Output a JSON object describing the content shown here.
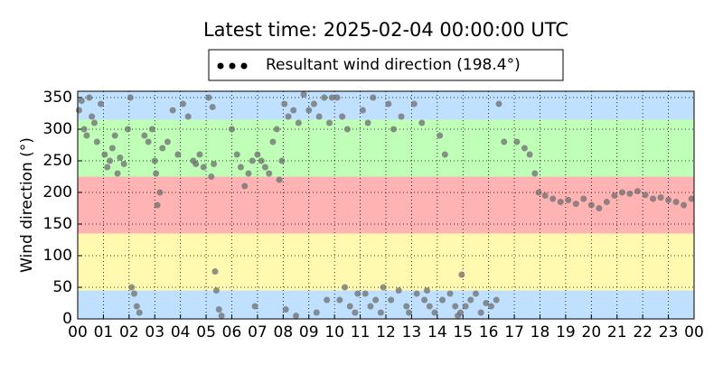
{
  "chart_data": {
    "type": "scatter",
    "title": "Latest time: 2025-02-04 00:00:00 UTC",
    "ylabel": "Wind direction (°)",
    "xlim": [
      0,
      24
    ],
    "ylim": [
      0,
      360
    ],
    "xticks": [
      {
        "value": 0,
        "label": "00"
      },
      {
        "value": 1,
        "label": "01"
      },
      {
        "value": 2,
        "label": "02"
      },
      {
        "value": 3,
        "label": "03"
      },
      {
        "value": 4,
        "label": "04"
      },
      {
        "value": 5,
        "label": "05"
      },
      {
        "value": 6,
        "label": "06"
      },
      {
        "value": 7,
        "label": "07"
      },
      {
        "value": 8,
        "label": "08"
      },
      {
        "value": 9,
        "label": "09"
      },
      10,
      11,
      12,
      13,
      14,
      15,
      16,
      17,
      18,
      19,
      20,
      21,
      22,
      23,
      {
        "value": 24,
        "label": "00"
      }
    ],
    "yticks": [
      0,
      50,
      100,
      150,
      200,
      250,
      300,
      350
    ],
    "grid": true,
    "bands": [
      {
        "from": 0,
        "to": 45,
        "color": "#bfe0ff"
      },
      {
        "from": 45,
        "to": 135,
        "color": "#fffab0"
      },
      {
        "from": 135,
        "to": 225,
        "color": "#ffb3b3"
      },
      {
        "from": 225,
        "to": 315,
        "color": "#bfffb7"
      },
      {
        "from": 315,
        "to": 360,
        "color": "#bfe0ff"
      }
    ],
    "legend": "top",
    "series": [
      {
        "name": "Resultant wind direction (198.4°)",
        "color": "#6e6e6e",
        "x": [
          0.05,
          0.15,
          0.25,
          0.35,
          0.45,
          0.55,
          0.65,
          0.75,
          0.9,
          1.05,
          1.15,
          1.25,
          1.35,
          1.45,
          1.55,
          1.65,
          1.8,
          1.95,
          2.05,
          2.1,
          2.2,
          2.3,
          2.4,
          2.6,
          2.75,
          2.9,
          3.0,
          3.05,
          3.1,
          3.2,
          3.3,
          3.5,
          3.7,
          3.9,
          4.1,
          4.3,
          4.5,
          4.6,
          4.75,
          4.9,
          5.1,
          5.25,
          5.3,
          5.35,
          5.4,
          5.5,
          5.2,
          5.6,
          6.0,
          6.2,
          6.35,
          6.5,
          6.65,
          6.8,
          6.9,
          7.0,
          7.15,
          7.3,
          7.45,
          7.6,
          7.75,
          7.85,
          7.95,
          8.05,
          8.2,
          8.4,
          8.6,
          8.8,
          8.1,
          8.5,
          9.0,
          9.2,
          9.4,
          9.6,
          9.8,
          9.9,
          9.3,
          9.7,
          10.1,
          10.3,
          10.5,
          10.2,
          10.4,
          10.6,
          10.8,
          10.9,
          11.1,
          11.3,
          11.5,
          11.2,
          11.4,
          11.6,
          11.8,
          11.9,
          12.1,
          12.3,
          12.6,
          12.2,
          12.5,
          12.8,
          12.9,
          13.1,
          13.4,
          13.2,
          13.5,
          13.7,
          13.9,
          13.6,
          14.1,
          14.3,
          14.2,
          14.5,
          14.7,
          14.9,
          14.8,
          15.1,
          15.3,
          15.5,
          14.95,
          15.7,
          15.9,
          16.1,
          16.3,
          16.4,
          16.6,
          17.1,
          17.4,
          17.6,
          17.8,
          17.95,
          18.2,
          18.5,
          18.8,
          19.1,
          19.4,
          19.7,
          20.0,
          20.3,
          20.6,
          20.9,
          21.2,
          21.5,
          21.8,
          22.1,
          22.4,
          22.7,
          23.0,
          23.3,
          23.6,
          23.9
        ],
        "values": [
          330,
          345,
          300,
          290,
          350,
          320,
          310,
          280,
          340,
          260,
          240,
          250,
          270,
          290,
          230,
          255,
          245,
          300,
          350,
          50,
          40,
          20,
          10,
          290,
          280,
          300,
          250,
          230,
          180,
          200,
          270,
          280,
          330,
          260,
          340,
          320,
          250,
          245,
          260,
          240,
          350,
          335,
          245,
          75,
          45,
          15,
          225,
          5,
          300,
          260,
          240,
          210,
          230,
          250,
          20,
          260,
          250,
          240,
          230,
          280,
          300,
          220,
          250,
          340,
          320,
          330,
          310,
          355,
          15,
          5,
          330,
          340,
          320,
          350,
          310,
          350,
          10,
          30,
          350,
          320,
          300,
          30,
          50,
          20,
          10,
          40,
          330,
          310,
          350,
          40,
          20,
          30,
          10,
          50,
          340,
          300,
          320,
          30,
          45,
          20,
          10,
          340,
          310,
          40,
          30,
          20,
          10,
          45,
          290,
          260,
          30,
          40,
          20,
          10,
          5,
          20,
          30,
          40,
          70,
          10,
          25,
          20,
          30,
          340,
          280,
          280,
          270,
          260,
          230,
          200,
          195,
          190,
          185,
          188,
          182,
          190,
          180,
          175,
          185,
          195,
          200,
          198,
          202,
          196,
          190,
          192,
          188,
          185,
          180,
          190
        ]
      }
    ]
  }
}
